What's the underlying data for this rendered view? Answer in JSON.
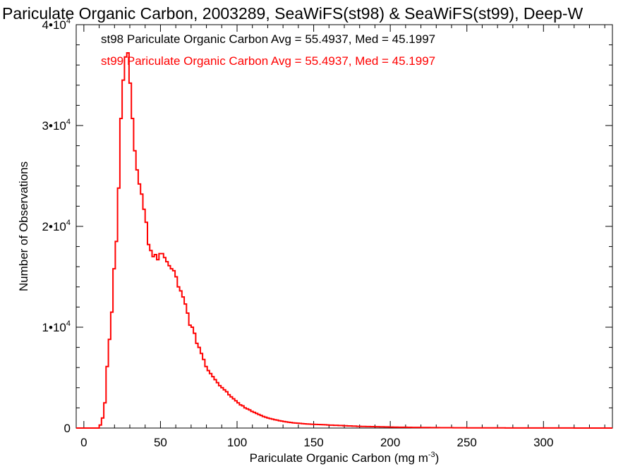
{
  "chart_data": {
    "type": "histogram",
    "title": "Pariculate Organic Carbon, 2003289, SeaWiFS(st98) & SeaWiFS(st99), Deep-W",
    "xlabel_main": "Pariculate Organic Carbon (mg m",
    "xlabel_exp": "-3",
    "xlabel_close": ")",
    "ylabel": "Number of Observations",
    "xlim": [
      -5,
      345
    ],
    "ylim": [
      0,
      40000
    ],
    "x_ticks": [
      {
        "value": 0,
        "label": "0"
      },
      {
        "value": 50,
        "label": "50"
      },
      {
        "value": 100,
        "label": "100"
      },
      {
        "value": 150,
        "label": "150"
      },
      {
        "value": 200,
        "label": "200"
      },
      {
        "value": 250,
        "label": "250"
      },
      {
        "value": 300,
        "label": "300"
      }
    ],
    "y_ticks": [
      {
        "value": 0,
        "mantissa": "0",
        "exp": ""
      },
      {
        "value": 10000,
        "mantissa": "1•10",
        "exp": "4"
      },
      {
        "value": 20000,
        "mantissa": "2•10",
        "exp": "4"
      },
      {
        "value": 30000,
        "mantissa": "3•10",
        "exp": "4"
      },
      {
        "value": 40000,
        "mantissa": "4•10",
        "exp": "4"
      }
    ],
    "annotations": [
      {
        "text": "st98 Pariculate Organic Carbon Avg = 55.4937, Med = 45.1997",
        "color": "#000000"
      },
      {
        "text": "st99 Pariculate Organic Carbon Avg = 55.4937, Med = 45.1997",
        "color": "#ff0000"
      }
    ],
    "series": [
      {
        "color": "#ff0000",
        "bin_width": 1.5,
        "bins": [
          [
            -5,
            0
          ],
          [
            8,
            0
          ],
          [
            10,
            300
          ],
          [
            11.5,
            1000
          ],
          [
            13,
            2500
          ],
          [
            14.5,
            6100
          ],
          [
            16,
            8800
          ],
          [
            17.5,
            11500
          ],
          [
            19,
            15800
          ],
          [
            20.5,
            18500
          ],
          [
            22,
            23800
          ],
          [
            23.5,
            30700
          ],
          [
            25,
            34500
          ],
          [
            26.5,
            36800
          ],
          [
            28,
            37200
          ],
          [
            29.5,
            34200
          ],
          [
            31,
            30700
          ],
          [
            32.5,
            27500
          ],
          [
            34,
            25600
          ],
          [
            35.5,
            24200
          ],
          [
            37,
            23200
          ],
          [
            38.5,
            21700
          ],
          [
            40,
            20400
          ],
          [
            41.5,
            18200
          ],
          [
            43,
            17600
          ],
          [
            44.5,
            17000
          ],
          [
            46,
            17200
          ],
          [
            47.5,
            16700
          ],
          [
            49,
            17300
          ],
          [
            50.5,
            17300
          ],
          [
            52,
            16900
          ],
          [
            53.5,
            16500
          ],
          [
            55,
            16100
          ],
          [
            56.5,
            15800
          ],
          [
            58,
            15600
          ],
          [
            59.5,
            15000
          ],
          [
            61,
            14000
          ],
          [
            62.5,
            13600
          ],
          [
            64,
            13000
          ],
          [
            65.5,
            12300
          ],
          [
            67,
            11400
          ],
          [
            68.5,
            10200
          ],
          [
            70,
            10000
          ],
          [
            71.5,
            9400
          ],
          [
            73,
            8400
          ],
          [
            74.5,
            8000
          ],
          [
            76,
            7400
          ],
          [
            77.5,
            6800
          ],
          [
            79,
            6100
          ],
          [
            80.5,
            5700
          ],
          [
            82,
            5400
          ],
          [
            83.5,
            5100
          ],
          [
            85,
            4800
          ],
          [
            86.5,
            4500
          ],
          [
            88,
            4200
          ],
          [
            89.5,
            4000
          ],
          [
            91,
            3800
          ],
          [
            92.5,
            3600
          ],
          [
            94,
            3300
          ],
          [
            95.5,
            3100
          ],
          [
            97,
            2900
          ],
          [
            98.5,
            2700
          ],
          [
            100,
            2500
          ],
          [
            101.5,
            2300
          ],
          [
            103,
            2200
          ],
          [
            104.5,
            2000
          ],
          [
            106,
            1900
          ],
          [
            107.5,
            1800
          ],
          [
            109,
            1650
          ],
          [
            110.5,
            1550
          ],
          [
            112,
            1450
          ],
          [
            113.5,
            1350
          ],
          [
            115,
            1250
          ],
          [
            116.5,
            1150
          ],
          [
            118,
            1080
          ],
          [
            119.5,
            1000
          ],
          [
            121,
            940
          ],
          [
            122.5,
            880
          ],
          [
            124,
            820
          ],
          [
            125.5,
            780
          ],
          [
            127,
            730
          ],
          [
            128.5,
            690
          ],
          [
            130,
            650
          ],
          [
            131.5,
            610
          ],
          [
            133,
            580
          ],
          [
            134.5,
            550
          ],
          [
            136,
            520
          ],
          [
            137.5,
            500
          ],
          [
            139,
            480
          ],
          [
            140.5,
            460
          ],
          [
            142,
            440
          ],
          [
            143.5,
            420
          ],
          [
            145,
            400
          ],
          [
            146.5,
            390
          ],
          [
            148,
            380
          ],
          [
            149.5,
            370
          ],
          [
            151,
            360
          ],
          [
            152.5,
            350
          ],
          [
            154,
            340
          ],
          [
            155.5,
            330
          ],
          [
            157,
            320
          ],
          [
            158.5,
            310
          ],
          [
            160,
            290
          ],
          [
            163,
            270
          ],
          [
            166,
            250
          ],
          [
            169,
            230
          ],
          [
            172,
            210
          ],
          [
            175,
            190
          ],
          [
            178,
            170
          ],
          [
            181,
            160
          ],
          [
            184,
            150
          ],
          [
            187,
            140
          ],
          [
            190,
            130
          ],
          [
            193,
            120
          ],
          [
            196,
            110
          ],
          [
            199,
            100
          ],
          [
            202,
            90
          ],
          [
            205,
            80
          ],
          [
            208,
            75
          ],
          [
            211,
            70
          ],
          [
            214,
            65
          ],
          [
            217,
            60
          ],
          [
            220,
            55
          ],
          [
            223,
            50
          ],
          [
            226,
            45
          ],
          [
            229,
            40
          ],
          [
            232,
            38
          ],
          [
            235,
            35
          ],
          [
            238,
            32
          ],
          [
            241,
            30
          ],
          [
            244,
            28
          ],
          [
            247,
            25
          ],
          [
            250,
            22
          ],
          [
            255,
            20
          ],
          [
            260,
            18
          ],
          [
            265,
            15
          ],
          [
            270,
            12
          ],
          [
            275,
            10
          ],
          [
            280,
            9
          ],
          [
            285,
            8
          ],
          [
            290,
            7
          ],
          [
            295,
            6
          ],
          [
            300,
            5
          ],
          [
            310,
            4
          ],
          [
            320,
            3
          ],
          [
            330,
            2
          ],
          [
            340,
            1
          ],
          [
            345,
            0
          ]
        ]
      }
    ]
  }
}
